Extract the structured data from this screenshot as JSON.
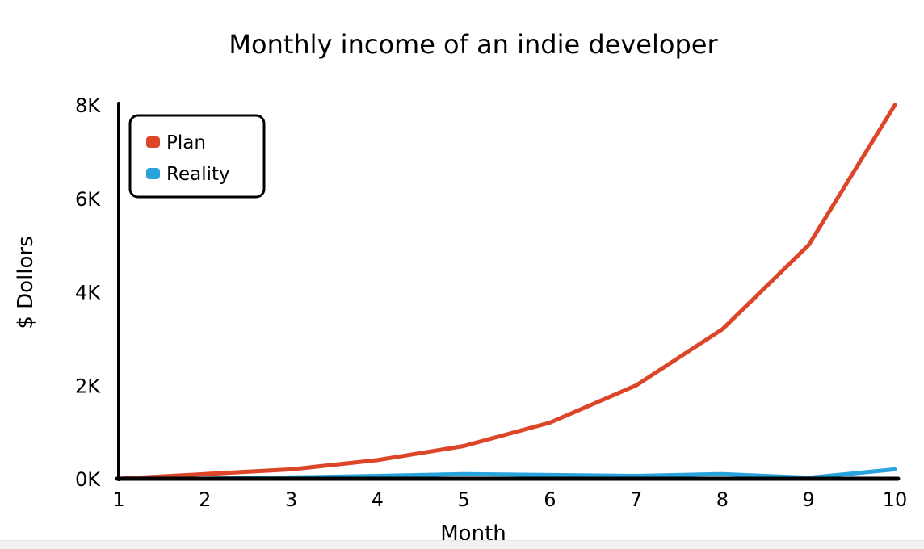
{
  "chart_data": {
    "type": "line",
    "title": "Monthly income of an indie developer",
    "xlabel": "Month",
    "ylabel": "$ Dollors",
    "x": [
      1,
      2,
      3,
      4,
      5,
      6,
      7,
      8,
      9,
      10
    ],
    "x_ticks": [
      "1",
      "2",
      "3",
      "4",
      "5",
      "6",
      "7",
      "8",
      "9",
      "10"
    ],
    "y_ticks": [
      {
        "value": 0,
        "label": "0K"
      },
      {
        "value": 2000,
        "label": "2K"
      },
      {
        "value": 4000,
        "label": "4K"
      },
      {
        "value": 6000,
        "label": "6K"
      },
      {
        "value": 8000,
        "label": "8K"
      }
    ],
    "xlim": [
      1,
      10
    ],
    "ylim": [
      0,
      8000
    ],
    "grid": false,
    "legend_position": "top-left",
    "series": [
      {
        "name": "Plan",
        "color": "#dd4528",
        "values": [
          0,
          100,
          200,
          400,
          700,
          1200,
          2000,
          3200,
          5000,
          8000
        ]
      },
      {
        "name": "Reality",
        "color": "#28a3dd",
        "values": [
          0,
          1,
          30,
          60,
          100,
          80,
          60,
          100,
          20,
          200
        ]
      }
    ]
  }
}
